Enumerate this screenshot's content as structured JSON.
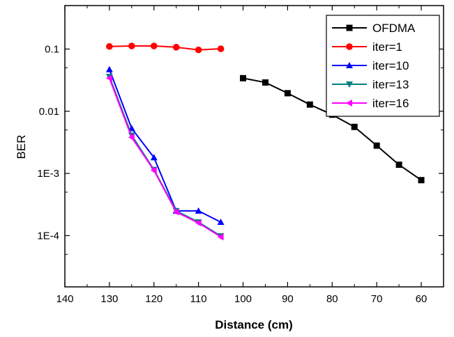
{
  "chart_data": {
    "type": "line",
    "title": "",
    "xlabel": "Distance (cm)",
    "ylabel": "BER",
    "x_reversed": true,
    "xlim": [
      140,
      55
    ],
    "y_scale": "log",
    "ylim": [
      1.5e-05,
      0.5
    ],
    "grid": false,
    "legend_position": "top-right",
    "x_ticks": [
      140,
      130,
      120,
      110,
      100,
      90,
      80,
      70,
      60
    ],
    "x_tick_labels": [
      "140",
      "130",
      "120",
      "110",
      "100",
      "90",
      "80",
      "70",
      "60"
    ],
    "y_ticks": [
      0.0001,
      0.001,
      0.01,
      0.1
    ],
    "y_tick_labels": [
      "1E-4",
      "1E-3",
      "0.01",
      "0.1"
    ],
    "series": [
      {
        "name": "OFDMA",
        "color": "#000000",
        "marker": "square",
        "x": [
          100,
          95,
          90,
          85,
          80,
          75,
          70,
          65,
          60
        ],
        "y": [
          0.034,
          0.029,
          0.0195,
          0.0128,
          0.0088,
          0.0056,
          0.0028,
          0.00138,
          0.00078
        ]
      },
      {
        "name": "iter=1",
        "color": "#ff0000",
        "marker": "circle",
        "x": [
          130,
          125,
          120,
          115,
          110,
          105
        ],
        "y": [
          0.11,
          0.112,
          0.112,
          0.107,
          0.097,
          0.101
        ]
      },
      {
        "name": "iter=10",
        "color": "#0000ff",
        "marker": "triangle-up",
        "x": [
          130,
          125,
          120,
          115,
          110,
          105
        ],
        "y": [
          0.047,
          0.0053,
          0.0018,
          0.00025,
          0.00025,
          0.000165
        ]
      },
      {
        "name": "iter=13",
        "color": "#008080",
        "marker": "triangle-down",
        "x": [
          130,
          125,
          120,
          115,
          110,
          105
        ],
        "y": [
          0.036,
          0.0041,
          0.00115,
          0.00025,
          0.000165,
          9.85e-05
        ]
      },
      {
        "name": "iter=16",
        "color": "#ff00ff",
        "marker": "triangle-left",
        "x": [
          130,
          125,
          120,
          115,
          110,
          105
        ],
        "y": [
          0.034,
          0.0038,
          0.00112,
          0.00024,
          0.00016,
          9.55e-05
        ]
      }
    ]
  }
}
